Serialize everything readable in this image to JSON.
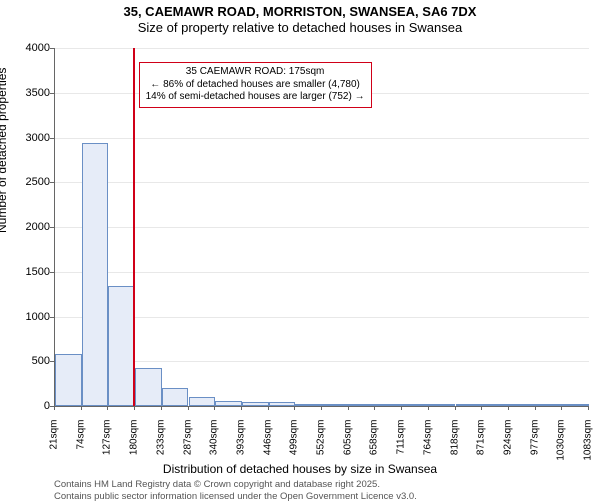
{
  "title_line1": "35, CAEMAWR ROAD, MORRISTON, SWANSEA, SA6 7DX",
  "title_line2": "Size of property relative to detached houses in Swansea",
  "y_axis_label": "Number of detached properties",
  "x_axis_label": "Distribution of detached houses by size in Swansea",
  "footer_line1": "Contains HM Land Registry data © Crown copyright and database right 2025.",
  "footer_line2": "Contains public sector information licensed under the Open Government Licence v3.0.",
  "annotation": {
    "line1": "35 CAEMAWR ROAD: 175sqm",
    "line2": "← 86% of detached houses are smaller (4,780)",
    "line3": "14% of semi-detached houses are larger (752) →"
  },
  "chart": {
    "type": "histogram",
    "ylim": [
      0,
      4000
    ],
    "ytick_step": 500,
    "background_color": "#ffffff",
    "grid_color": "#e8e8e8",
    "bar_fill": "#e6ecf8",
    "bar_border": "#6a8fc5",
    "ref_line_color": "#d00018",
    "ref_line_x": 175,
    "x_start": 21,
    "x_step": 53,
    "x_labels": [
      "21sqm",
      "74sqm",
      "127sqm",
      "180sqm",
      "233sqm",
      "287sqm",
      "340sqm",
      "393sqm",
      "446sqm",
      "499sqm",
      "552sqm",
      "605sqm",
      "658sqm",
      "711sqm",
      "764sqm",
      "818sqm",
      "871sqm",
      "924sqm",
      "977sqm",
      "1030sqm",
      "1083sqm"
    ],
    "values": [
      580,
      2940,
      1340,
      420,
      200,
      100,
      55,
      45,
      40,
      28,
      18,
      17,
      8,
      8,
      6,
      6,
      5,
      4,
      4,
      3
    ],
    "title_fontsize": 13,
    "label_fontsize": 12,
    "tick_fontsize": 10
  }
}
